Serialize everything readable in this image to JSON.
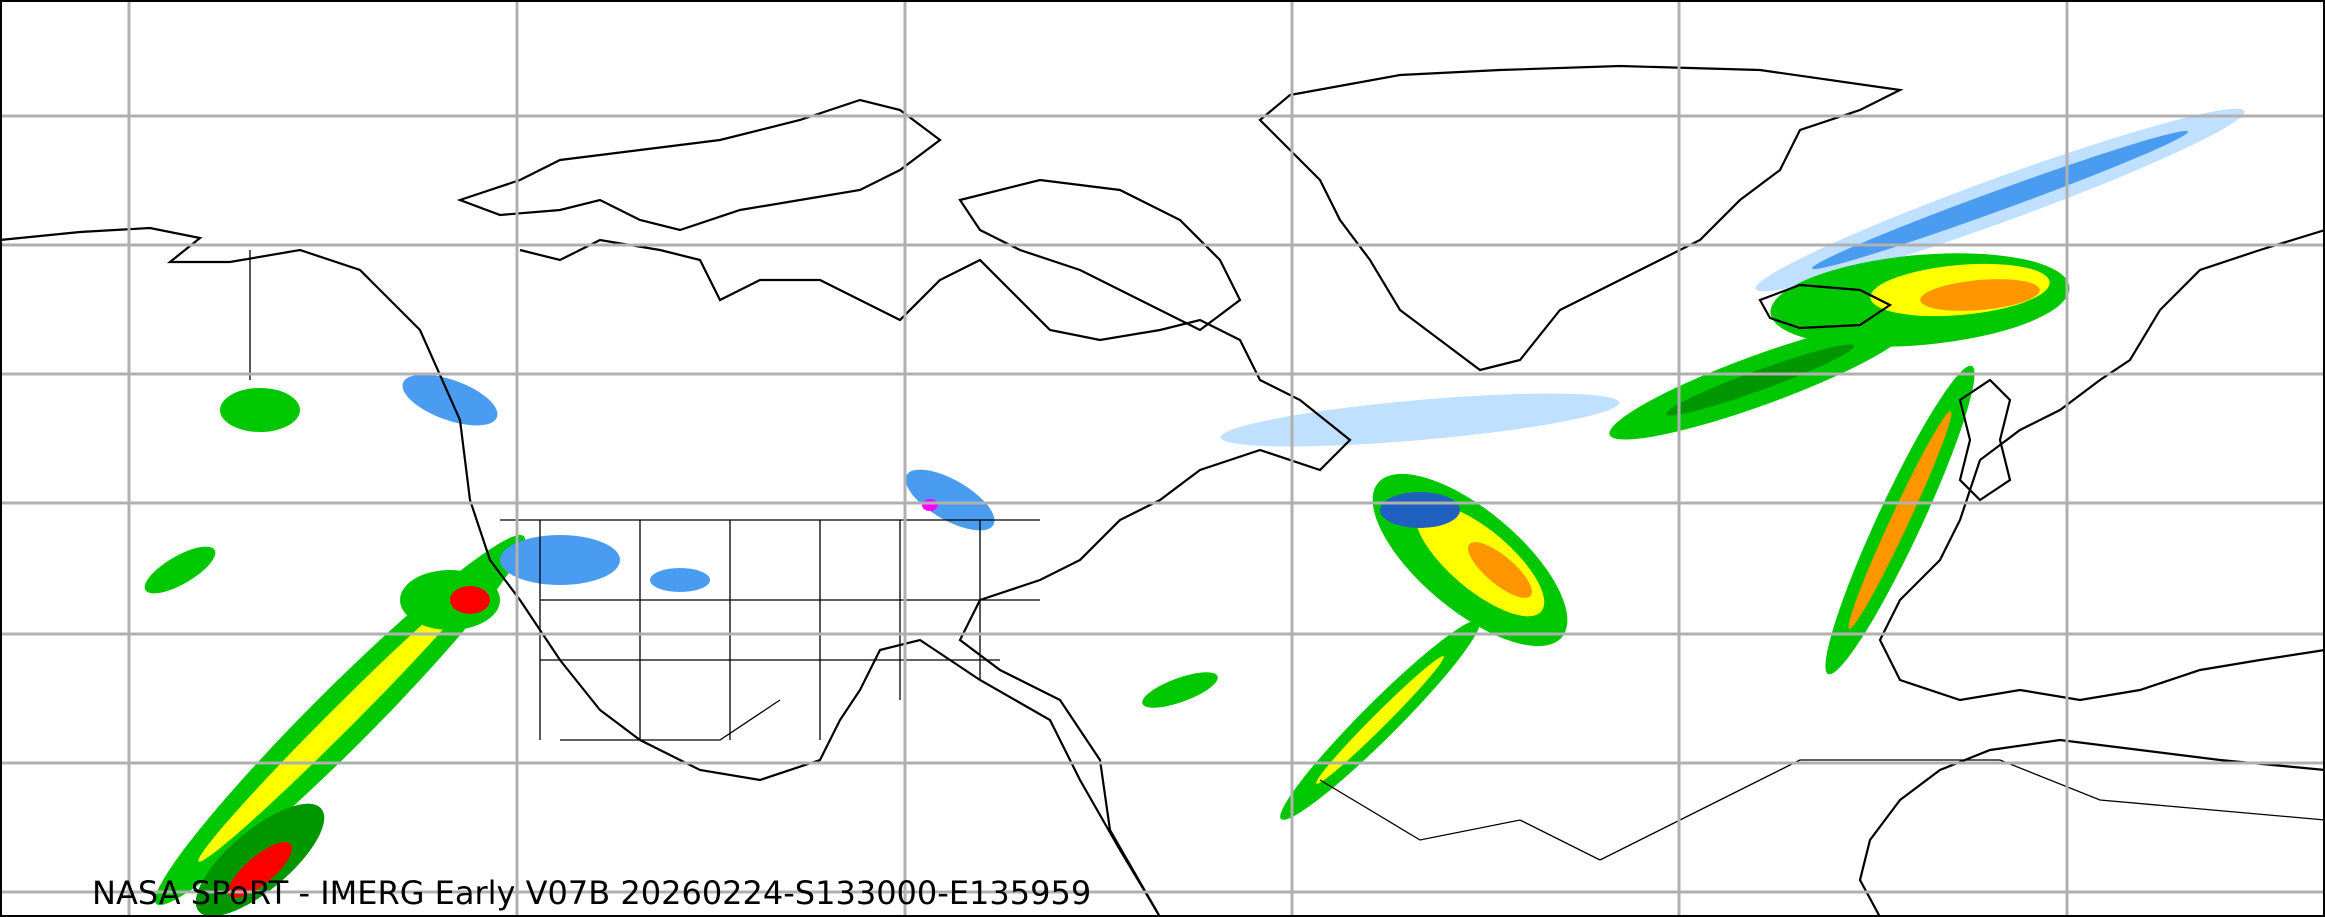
{
  "map": {
    "caption": "NASA SPoRT - IMERG Early V07B 20260224-S133000-E135959",
    "background_color": "#ffffff",
    "grid_color": "#b0b0b0",
    "coastline_color": "#000000",
    "precip_colors": {
      "very_light": "#bfe0ff",
      "light": "#4a9cf0",
      "moderate_blue": "#2060c0",
      "light_green": "#00c800",
      "green": "#009600",
      "dark_green": "#005000",
      "yellow": "#ffff00",
      "orange": "#ff9600",
      "red": "#ff0000",
      "dark_red": "#b40000",
      "magenta": "#ff00ff"
    }
  }
}
